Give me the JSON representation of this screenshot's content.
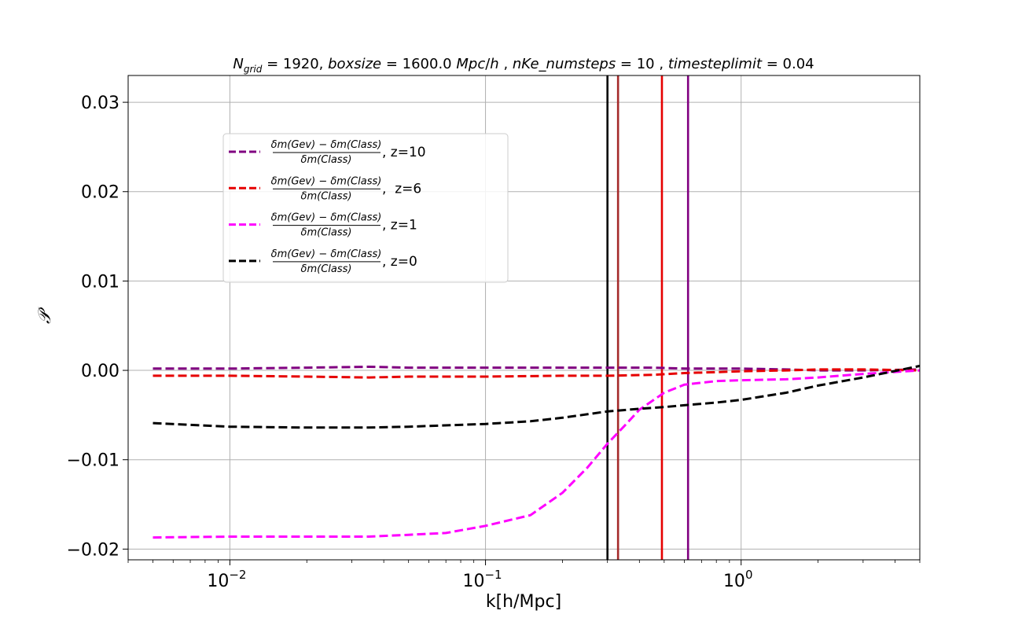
{
  "chart_data": {
    "type": "line",
    "title": "N_grid = 1920, boxsize = 1600.0 Mpc/h , nKe_numsteps = 10 , timesteplimit = 0.04",
    "xlabel": "k[h/Mpc]",
    "ylabel": "𝒫",
    "x_scale": "log",
    "xlim": [
      0.004,
      5.0
    ],
    "ylim": [
      -0.0212,
      0.033
    ],
    "grid": true,
    "legend_position": "upper-left",
    "x_ticks": [
      {
        "value": 0.01,
        "base": "10",
        "exp": "−2"
      },
      {
        "value": 0.1,
        "base": "10",
        "exp": "−1"
      },
      {
        "value": 1,
        "base": "10",
        "exp": "0"
      }
    ],
    "y_ticks": [
      {
        "value": -0.02,
        "label": "−0.02"
      },
      {
        "value": -0.01,
        "label": "−0.01"
      },
      {
        "value": 0.0,
        "label": "0.00"
      },
      {
        "value": 0.01,
        "label": "0.01"
      },
      {
        "value": 0.02,
        "label": "0.02"
      },
      {
        "value": 0.03,
        "label": "0.03"
      }
    ],
    "series": [
      {
        "name": "z=10",
        "color": "#800080",
        "style": "dashed",
        "x": [
          0.005,
          0.01,
          0.02,
          0.035,
          0.05,
          0.1,
          0.2,
          0.3,
          0.45,
          0.6,
          0.8,
          1.0,
          1.5,
          2.0,
          3.0,
          5.0
        ],
        "y": [
          0.0002,
          0.0002,
          0.0003,
          0.0004,
          0.0003,
          0.0003,
          0.0003,
          0.0003,
          0.0003,
          0.0002,
          0.0002,
          0.0002,
          0.0001,
          0.0,
          0.0,
          0.0001
        ]
      },
      {
        "name": "z=6",
        "color": "#e60000",
        "style": "dashed",
        "x": [
          0.005,
          0.01,
          0.02,
          0.035,
          0.05,
          0.1,
          0.2,
          0.3,
          0.45,
          0.6,
          0.8,
          1.0,
          1.5,
          2.0,
          3.0,
          5.0
        ],
        "y": [
          -0.0006,
          -0.0006,
          -0.0007,
          -0.0008,
          -0.0007,
          -0.0007,
          -0.0006,
          -0.0006,
          -0.0005,
          -0.0003,
          -0.0002,
          -0.0001,
          0.0,
          0.0001,
          0.0001,
          0.0
        ]
      },
      {
        "name": "z=1",
        "color": "#ff00ff",
        "style": "dashed",
        "x": [
          0.005,
          0.01,
          0.02,
          0.035,
          0.05,
          0.07,
          0.1,
          0.15,
          0.2,
          0.25,
          0.3,
          0.35,
          0.4,
          0.5,
          0.6,
          0.8,
          1.0,
          1.5,
          2.0,
          3.0,
          5.0
        ],
        "y": [
          -0.0187,
          -0.0186,
          -0.0186,
          -0.0186,
          -0.0184,
          -0.0182,
          -0.0174,
          -0.0162,
          -0.0137,
          -0.0109,
          -0.0082,
          -0.0062,
          -0.0044,
          -0.0025,
          -0.0016,
          -0.0012,
          -0.0011,
          -0.001,
          -0.0008,
          -0.0004,
          0.0
        ]
      },
      {
        "name": "z=0",
        "color": "#000000",
        "style": "dashed",
        "x": [
          0.005,
          0.01,
          0.02,
          0.035,
          0.05,
          0.1,
          0.15,
          0.2,
          0.3,
          0.4,
          0.5,
          0.6,
          0.8,
          1.0,
          1.5,
          2.0,
          3.0,
          5.0
        ],
        "y": [
          -0.0059,
          -0.0063,
          -0.0064,
          -0.0064,
          -0.0063,
          -0.006,
          -0.0057,
          -0.0053,
          -0.0046,
          -0.0043,
          -0.0041,
          -0.0039,
          -0.0036,
          -0.0033,
          -0.0025,
          -0.0017,
          -0.0008,
          0.0005
        ]
      }
    ],
    "vertical_lines": [
      {
        "x": 0.3,
        "color": "#000000"
      },
      {
        "x": 0.33,
        "color": "#a52a2a"
      },
      {
        "x": 0.49,
        "color": "#e60000"
      },
      {
        "x": 0.62,
        "color": "#800080"
      }
    ],
    "legend": [
      {
        "series": 0,
        "color": "#800080",
        "frac_num": "δm(Gev) − δm(Class)",
        "frac_den": "δm(Class)",
        "suffix": ", z=10"
      },
      {
        "series": 1,
        "color": "#e60000",
        "frac_num": "δm(Gev) − δm(Class)",
        "frac_den": "δm(Class)",
        "suffix": ",  z=6"
      },
      {
        "series": 2,
        "color": "#ff00ff",
        "frac_num": "δm(Gev) − δm(Class)",
        "frac_den": "δm(Class)",
        "suffix": ", z=1"
      },
      {
        "series": 3,
        "color": "#000000",
        "frac_num": "δm(Gev) − δm(Class)",
        "frac_den": "δm(Class)",
        "suffix": ", z=0"
      }
    ]
  }
}
